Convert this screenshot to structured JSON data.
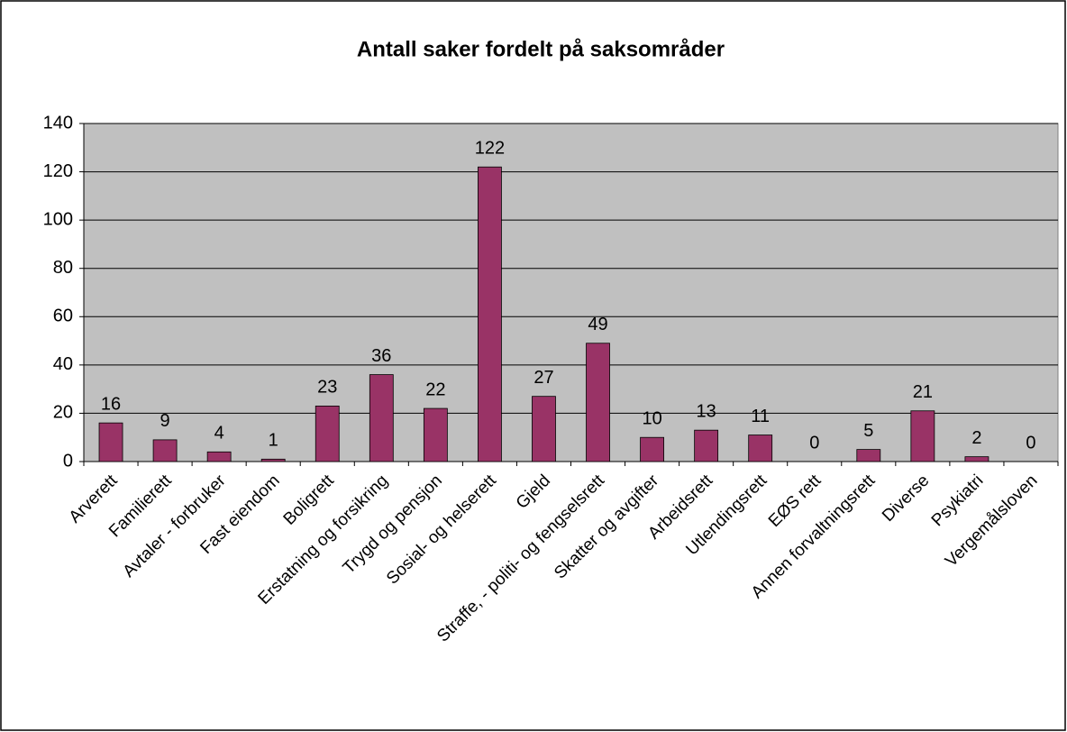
{
  "chart_data": {
    "type": "bar",
    "title": "Antall saker fordelt på saksområder",
    "categories": [
      "Arverett",
      "Familierett",
      "Avtaler - forbruker",
      "Fast eiendom",
      "Boligrett",
      "Erstatning og forsikring",
      "Trygd og pensjon",
      "Sosial- og helserett",
      "Gjeld",
      "Straffe, - politi- og fengselsrett",
      "Skatter og avgifter",
      "Arbeidsrett",
      "Utlendingsrett",
      "EØS rett",
      "Annen forvaltningsrett",
      "Diverse",
      "Psykiatri",
      "Vergemålsloven"
    ],
    "values": [
      16,
      9,
      4,
      1,
      23,
      36,
      22,
      122,
      27,
      49,
      10,
      13,
      11,
      0,
      5,
      21,
      2,
      0
    ],
    "color": "#993366",
    "ylim": [
      0,
      140
    ],
    "yticks": [
      0,
      20,
      40,
      60,
      80,
      100,
      120,
      140
    ],
    "grid": true
  }
}
